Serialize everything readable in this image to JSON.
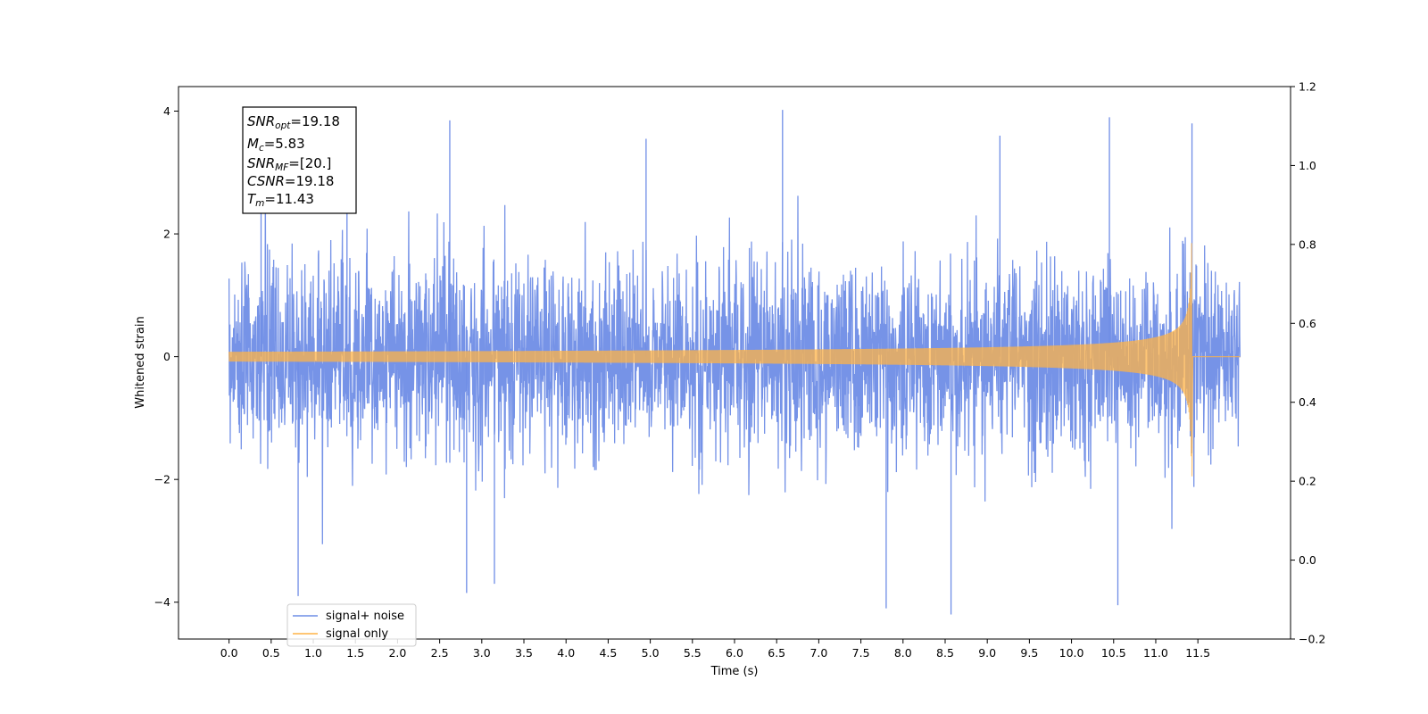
{
  "chart_data": {
    "type": "line",
    "title": "",
    "xlabel": "Time (s)",
    "ylabel": "Whitened strain",
    "xlim": [
      -0.6,
      12.6
    ],
    "ylim": [
      -4.6,
      4.4
    ],
    "y2lim": [
      -0.2,
      1.2
    ],
    "x_ticks": [
      0.0,
      0.5,
      1.0,
      1.5,
      2.0,
      2.5,
      3.0,
      3.5,
      4.0,
      4.5,
      5.0,
      5.5,
      6.0,
      6.5,
      7.0,
      7.5,
      8.0,
      8.5,
      9.0,
      9.5,
      10.0,
      10.5,
      11.0,
      11.5
    ],
    "x_tick_labels": [
      "0.0",
      "0.5",
      "1.0",
      "1.5",
      "2.0",
      "2.5",
      "3.0",
      "3.5",
      "4.0",
      "4.5",
      "5.0",
      "5.5",
      "6.0",
      "6.5",
      "7.0",
      "7.5",
      "8.0",
      "8.5",
      "9.0",
      "9.5",
      "10.0",
      "10.5",
      "11.0",
      "11.5"
    ],
    "y_ticks": [
      -4,
      -2,
      0,
      2,
      4
    ],
    "y_tick_labels": [
      "−4",
      "−2",
      "0",
      "2",
      "4"
    ],
    "y2_ticks": [
      -0.2,
      0.0,
      0.2,
      0.4,
      0.6,
      0.8,
      1.0,
      1.2
    ],
    "y2_tick_labels": [
      "−0.2",
      "0.0",
      "0.2",
      "0.4",
      "0.6",
      "0.8",
      "1.0",
      "1.2"
    ],
    "grid": false,
    "legend_position": "bottom-left",
    "series": [
      {
        "name": "signal+ noise",
        "color": "#6f8de6",
        "x_range": [
          0.0,
          12.0
        ],
        "typical_range": [
          -1.5,
          1.5
        ],
        "max": 4.02,
        "min": -4.2
      },
      {
        "name": "signal only",
        "color": "#ffb347",
        "x_range": [
          0.0,
          12.0
        ],
        "envelope_start": 0.08,
        "merger_time": 11.43,
        "merger_peak": 1.85,
        "merger_min": -1.95,
        "post_merger_value": 0.0
      }
    ],
    "annotation_box": {
      "position": "top-left",
      "lines": [
        {
          "sym": "SNR",
          "sub": "opt",
          "value": "=19.18"
        },
        {
          "sym": "M",
          "sub": "c",
          "value": "=5.83"
        },
        {
          "sym": "SNR",
          "sub": "MF",
          "value": "=[20.]"
        },
        {
          "sym": "CSNR",
          "sub": "",
          "value": "=19.18"
        },
        {
          "sym": "T",
          "sub": "m",
          "value": "=11.43"
        }
      ]
    }
  }
}
